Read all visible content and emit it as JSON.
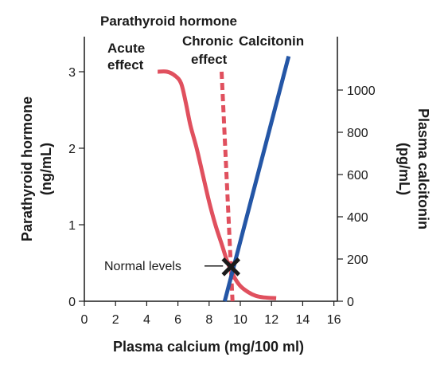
{
  "chart_data": {
    "type": "line",
    "title": "",
    "xlabel": "Plasma calcium (mg/100 ml)",
    "ylabel_left": "Parathyroid hormone (ng/mL)",
    "ylabel_right": "Plasma calcitonin (pg/mL)",
    "x_ticks": [
      "0",
      "2",
      "4",
      "6",
      "8",
      "10",
      "12",
      "14",
      "16"
    ],
    "y_left_ticks": [
      "0",
      "1",
      "2",
      "3"
    ],
    "y_right_ticks": [
      "0",
      "200",
      "400",
      "600",
      "800",
      "1000"
    ],
    "xlim": [
      0,
      16
    ],
    "ylim_left": [
      0,
      3
    ],
    "ylim_right": [
      0,
      1000
    ],
    "grid": false,
    "legend": "none",
    "colors": {
      "pth": "#e0505e",
      "calcitonin": "#2456a6",
      "marker": "#1a1a1a",
      "axis": "#1a1a1a"
    },
    "series": [
      {
        "axis": "left",
        "style": "solid",
        "color": "#e0505e",
        "x": [
          4.7,
          5.3,
          5.8,
          6.2,
          6.5,
          6.8,
          7.2,
          7.6,
          8.0,
          8.4,
          8.8,
          9.2,
          9.6,
          10.0,
          10.5,
          11.0,
          11.5,
          12.3
        ],
        "y": [
          3.0,
          3.0,
          2.95,
          2.85,
          2.6,
          2.3,
          2.0,
          1.65,
          1.3,
          1.0,
          0.75,
          0.5,
          0.32,
          0.2,
          0.12,
          0.07,
          0.05,
          0.04
        ]
      },
      {
        "axis": "left",
        "style": "dashed",
        "color": "#e0505e",
        "x": [
          8.8,
          9.5
        ],
        "y": [
          3.0,
          0.0
        ]
      },
      {
        "axis": "right",
        "style": "solid",
        "color": "#2456a6",
        "x": [
          9.0,
          13.1
        ],
        "y": [
          0,
          1160
        ]
      }
    ],
    "annotations": {
      "group_title": "Parathyroid hormone",
      "acute_line1": "Acute",
      "acute_line2": "effect",
      "chronic_line1": "Chronic",
      "chronic_line2": "effect",
      "calcitonin": "Calcitonin",
      "normal_levels": "Normal levels"
    },
    "normal_point": {
      "x": 9.4,
      "y": 0.45
    }
  }
}
